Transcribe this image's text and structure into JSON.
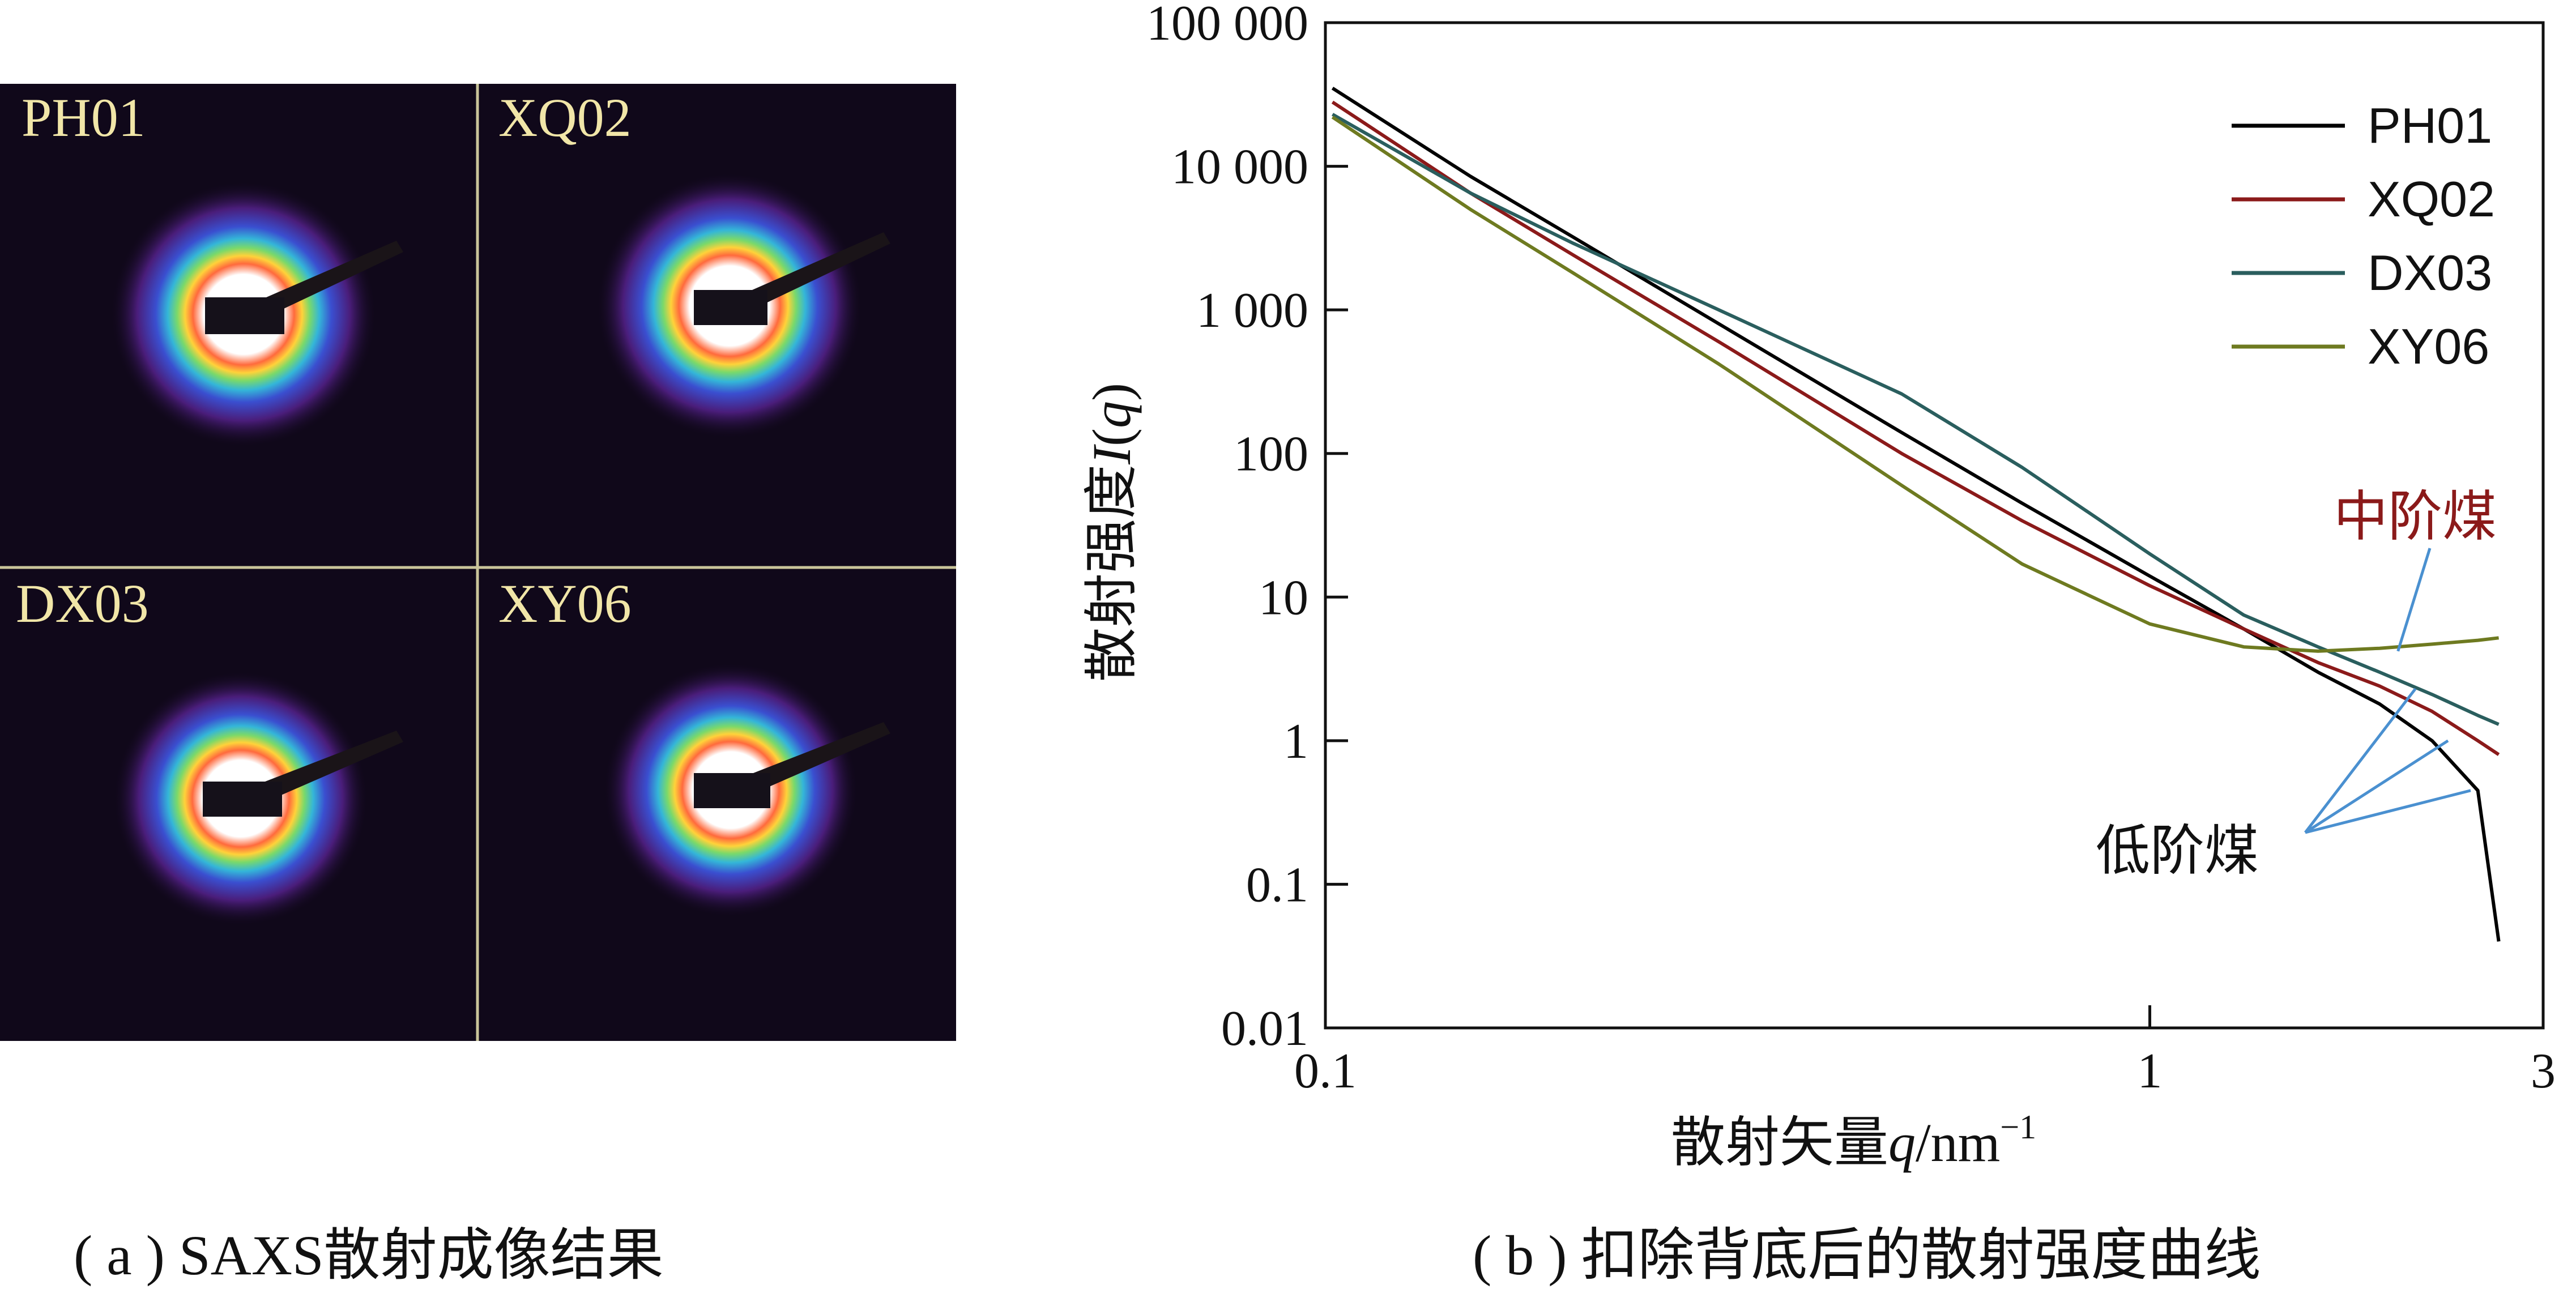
{
  "panel_a": {
    "caption": "( a ) SAXS散射成像结果",
    "images": [
      {
        "label": "PH01"
      },
      {
        "label": "XQ02"
      },
      {
        "label": "DX03"
      },
      {
        "label": "XY06"
      }
    ],
    "background_color": "#10081a",
    "divider_color": "#c9c49a"
  },
  "panel_b": {
    "caption": "( b ) 扣除背底后的散射强度曲线"
  },
  "chart_data": {
    "type": "line",
    "xlabel": "散射矢量q/nm⁻¹",
    "ylabel": "散射强度I(q)",
    "x_scale": "log",
    "y_scale": "log",
    "xlim": [
      0.1,
      3
    ],
    "ylim": [
      0.01,
      100000
    ],
    "x_ticks": [
      {
        "value": 0.1,
        "label": "0.1"
      },
      {
        "value": 1,
        "label": "1"
      },
      {
        "value": 3,
        "label": "3"
      }
    ],
    "y_ticks": [
      {
        "value": 100000,
        "label": "100 000"
      },
      {
        "value": 10000,
        "label": "10 000"
      },
      {
        "value": 1000,
        "label": "1 000"
      },
      {
        "value": 100,
        "label": "100"
      },
      {
        "value": 10,
        "label": "10"
      },
      {
        "value": 1,
        "label": "1"
      },
      {
        "value": 0.1,
        "label": "0.1"
      },
      {
        "value": 0.01,
        "label": "0.01"
      }
    ],
    "legend_position": "top-right",
    "grid": false,
    "series": [
      {
        "name": "PH01",
        "color": "#000000",
        "x": [
          0.102,
          0.15,
          0.2,
          0.3,
          0.5,
          0.7,
          1.0,
          1.3,
          1.6,
          1.9,
          2.2,
          2.5,
          2.65
        ],
        "y": [
          35000,
          8500,
          3200,
          800,
          140,
          45,
          14,
          6,
          3,
          1.8,
          1.0,
          0.45,
          0.04
        ]
      },
      {
        "name": "XQ02",
        "color": "#8b1a1a",
        "x": [
          0.102,
          0.15,
          0.2,
          0.3,
          0.5,
          0.7,
          1.0,
          1.3,
          1.6,
          1.9,
          2.2,
          2.5,
          2.65
        ],
        "y": [
          28000,
          6500,
          2400,
          600,
          100,
          34,
          12,
          6,
          3.5,
          2.4,
          1.6,
          1.0,
          0.8
        ]
      },
      {
        "name": "DX03",
        "color": "#2a5e5e",
        "x": [
          0.102,
          0.15,
          0.2,
          0.3,
          0.5,
          0.7,
          1.0,
          1.3,
          1.6,
          1.9,
          2.2,
          2.5,
          2.65
        ],
        "y": [
          23000,
          6500,
          2900,
          1000,
          260,
          80,
          20,
          7.5,
          4.5,
          3.0,
          2.1,
          1.5,
          1.3
        ]
      },
      {
        "name": "XY06",
        "color": "#6e7a20",
        "x": [
          0.102,
          0.15,
          0.2,
          0.3,
          0.5,
          0.7,
          1.0,
          1.3,
          1.6,
          1.9,
          2.2,
          2.5,
          2.65
        ],
        "y": [
          22000,
          5000,
          1800,
          420,
          60,
          17,
          6.5,
          4.5,
          4.2,
          4.4,
          4.7,
          5.0,
          5.2
        ]
      }
    ],
    "annotations": [
      {
        "text": "中阶煤",
        "color": "#8b1a1a",
        "points_to": [
          {
            "x": 2.0,
            "y": 4.2
          }
        ]
      },
      {
        "text": "低阶煤",
        "color": "#111111",
        "points_to": [
          {
            "x": 2.1,
            "y": 2.3
          },
          {
            "x": 2.3,
            "y": 1.0
          },
          {
            "x": 2.45,
            "y": 0.45
          }
        ]
      }
    ],
    "annotation_line_color": "#4a90d0"
  }
}
